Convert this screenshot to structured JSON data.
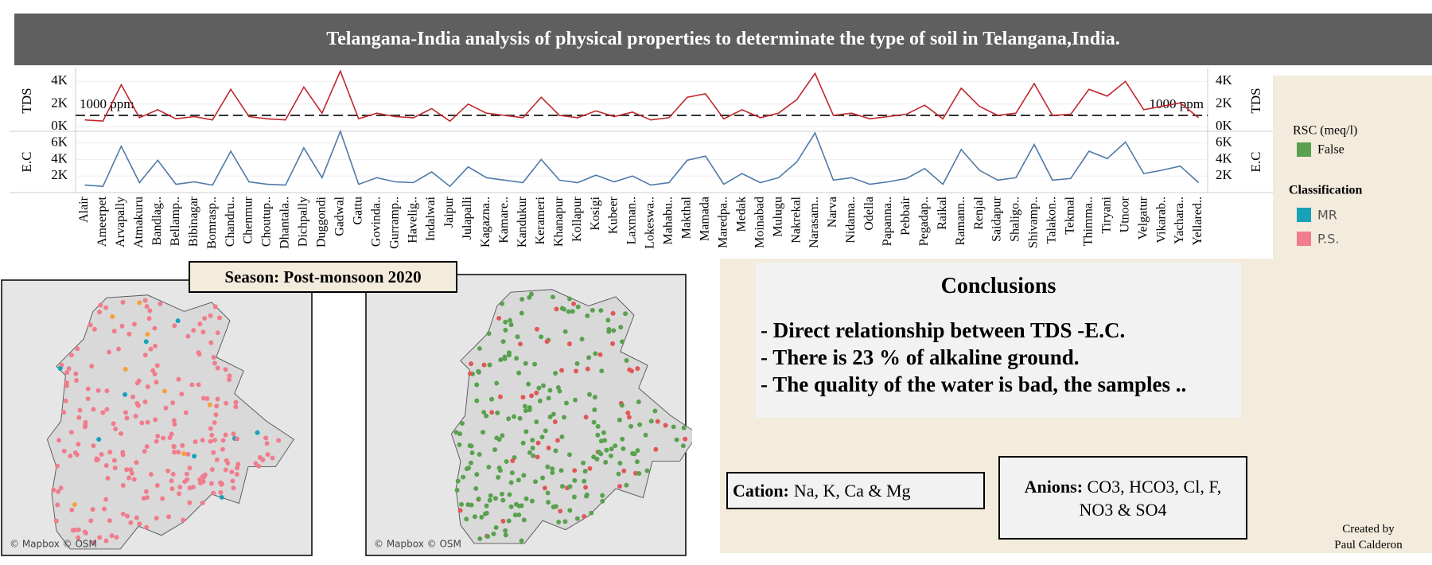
{
  "header": {
    "title": "Telangana-India analysis of physical properties to determinate the type of soil in Telangana,India."
  },
  "chart_data": [
    {
      "type": "line",
      "y_label": "TDS",
      "color": "#c0282d",
      "categories": [
        "Alair",
        "Ameerpet",
        "Arvapally",
        "Atmakuru",
        "Bandlag..",
        "Bellamp..",
        "Bibinagar",
        "Bomrasp..",
        "Chandru..",
        "Chenmur",
        "Choutup..",
        "Dhantala..",
        "Dichpally",
        "Duggondi",
        "Gadwal",
        "Gattu",
        "Govinda..",
        "Gurramp..",
        "Havelig..",
        "Indalwai",
        "Jaipur",
        "Julapalli",
        "Kagazna..",
        "Kamare..",
        "Kandukur",
        "Kerameri",
        "Khanapur",
        "Kollapur",
        "Kosigi",
        "Kubeer",
        "Laxman..",
        "Lokeswa..",
        "Mahabu..",
        "Makthal",
        "Mamada",
        "Maredpa..",
        "Medak",
        "Moinabad",
        "Mulugu",
        "Nakrekal",
        "Narasam..",
        "Narva",
        "Nidama..",
        "Odella",
        "Papanna..",
        "Pebbair",
        "Pegadap..",
        "Raikal",
        "Ramann..",
        "Renjal",
        "Saidapur",
        "Shaligo..",
        "Shivamp..",
        "Talakon..",
        "Tekmal",
        "Thimma..",
        "Tiryani",
        "Utnoor",
        "Velgatur",
        "Vikarab..",
        "Yachara..",
        "Yellared.."
      ],
      "values": [
        600,
        500,
        3700,
        800,
        1500,
        700,
        900,
        600,
        3300,
        900,
        700,
        600,
        3500,
        1200,
        4900,
        700,
        1200,
        900,
        800,
        1600,
        500,
        2000,
        1200,
        1000,
        800,
        2600,
        1000,
        800,
        1400,
        900,
        1300,
        600,
        800,
        2600,
        2900,
        700,
        1500,
        800,
        1200,
        2400,
        4700,
        1000,
        1200,
        700,
        900,
        1100,
        1900,
        700,
        3400,
        1800,
        1000,
        1200,
        3800,
        1000,
        1100,
        3300,
        2700,
        4000,
        1500,
        1800,
        2100,
        800
      ],
      "ylim": [
        -400,
        5000
      ],
      "yticks": [
        {
          "value": 0,
          "label": "0K"
        },
        {
          "value": 2000,
          "label": "2K"
        },
        {
          "value": 4000,
          "label": "4K"
        }
      ],
      "reference_line": {
        "value": 1000,
        "label": "1000 ppm"
      },
      "grid": true
    },
    {
      "type": "line",
      "y_label": "E.C",
      "color": "#4e79a7",
      "values": [
        900,
        750,
        5600,
        1200,
        3900,
        1000,
        1300,
        900,
        5000,
        1300,
        1000,
        900,
        5400,
        1800,
        7400,
        1000,
        1800,
        1300,
        1200,
        2500,
        750,
        3100,
        1800,
        1500,
        1200,
        4000,
        1500,
        1200,
        2100,
        1300,
        2000,
        900,
        1200,
        3900,
        4400,
        1000,
        2300,
        1200,
        1800,
        3700,
        7200,
        1500,
        1800,
        1000,
        1300,
        1700,
        2900,
        1000,
        5200,
        2700,
        1500,
        1800,
        5800,
        1500,
        1700,
        5000,
        4100,
        6100,
        2300,
        2700,
        3200,
        1200
      ],
      "ylim": [
        0,
        7400
      ],
      "yticks": [
        {
          "value": 2000,
          "label": "2K"
        },
        {
          "value": 4000,
          "label": "4K"
        },
        {
          "value": 6000,
          "label": "6K"
        }
      ],
      "grid": true
    }
  ],
  "legend": {
    "rsc_title": "RSC (meq/l)",
    "rsc_items": [
      {
        "name": "False",
        "color": "#59a14f"
      }
    ],
    "class_title": "Classification",
    "class_items": [
      {
        "name": "MR",
        "color": "#17a2b8"
      },
      {
        "name": "P.S.",
        "color": "#f07c8c"
      }
    ]
  },
  "maps": {
    "season": "Season: Post-monsoon 2020",
    "attribution": "© Mapbox © OSM"
  },
  "conclusions": {
    "title": "Conclusions",
    "items": [
      "- Direct relationship between TDS -E.C.",
      "- There is 23 % of alkaline ground.",
      "- The quality of the water is bad, the samples .."
    ]
  },
  "cation": {
    "label": "Cation:",
    "text": "Na, K, Ca & Mg"
  },
  "anions": {
    "label": "Anions:",
    "text": "CO3, HCO3, Cl, F, NO3 & SO4"
  },
  "credit": [
    "Created by",
    "Paul Calderon"
  ]
}
